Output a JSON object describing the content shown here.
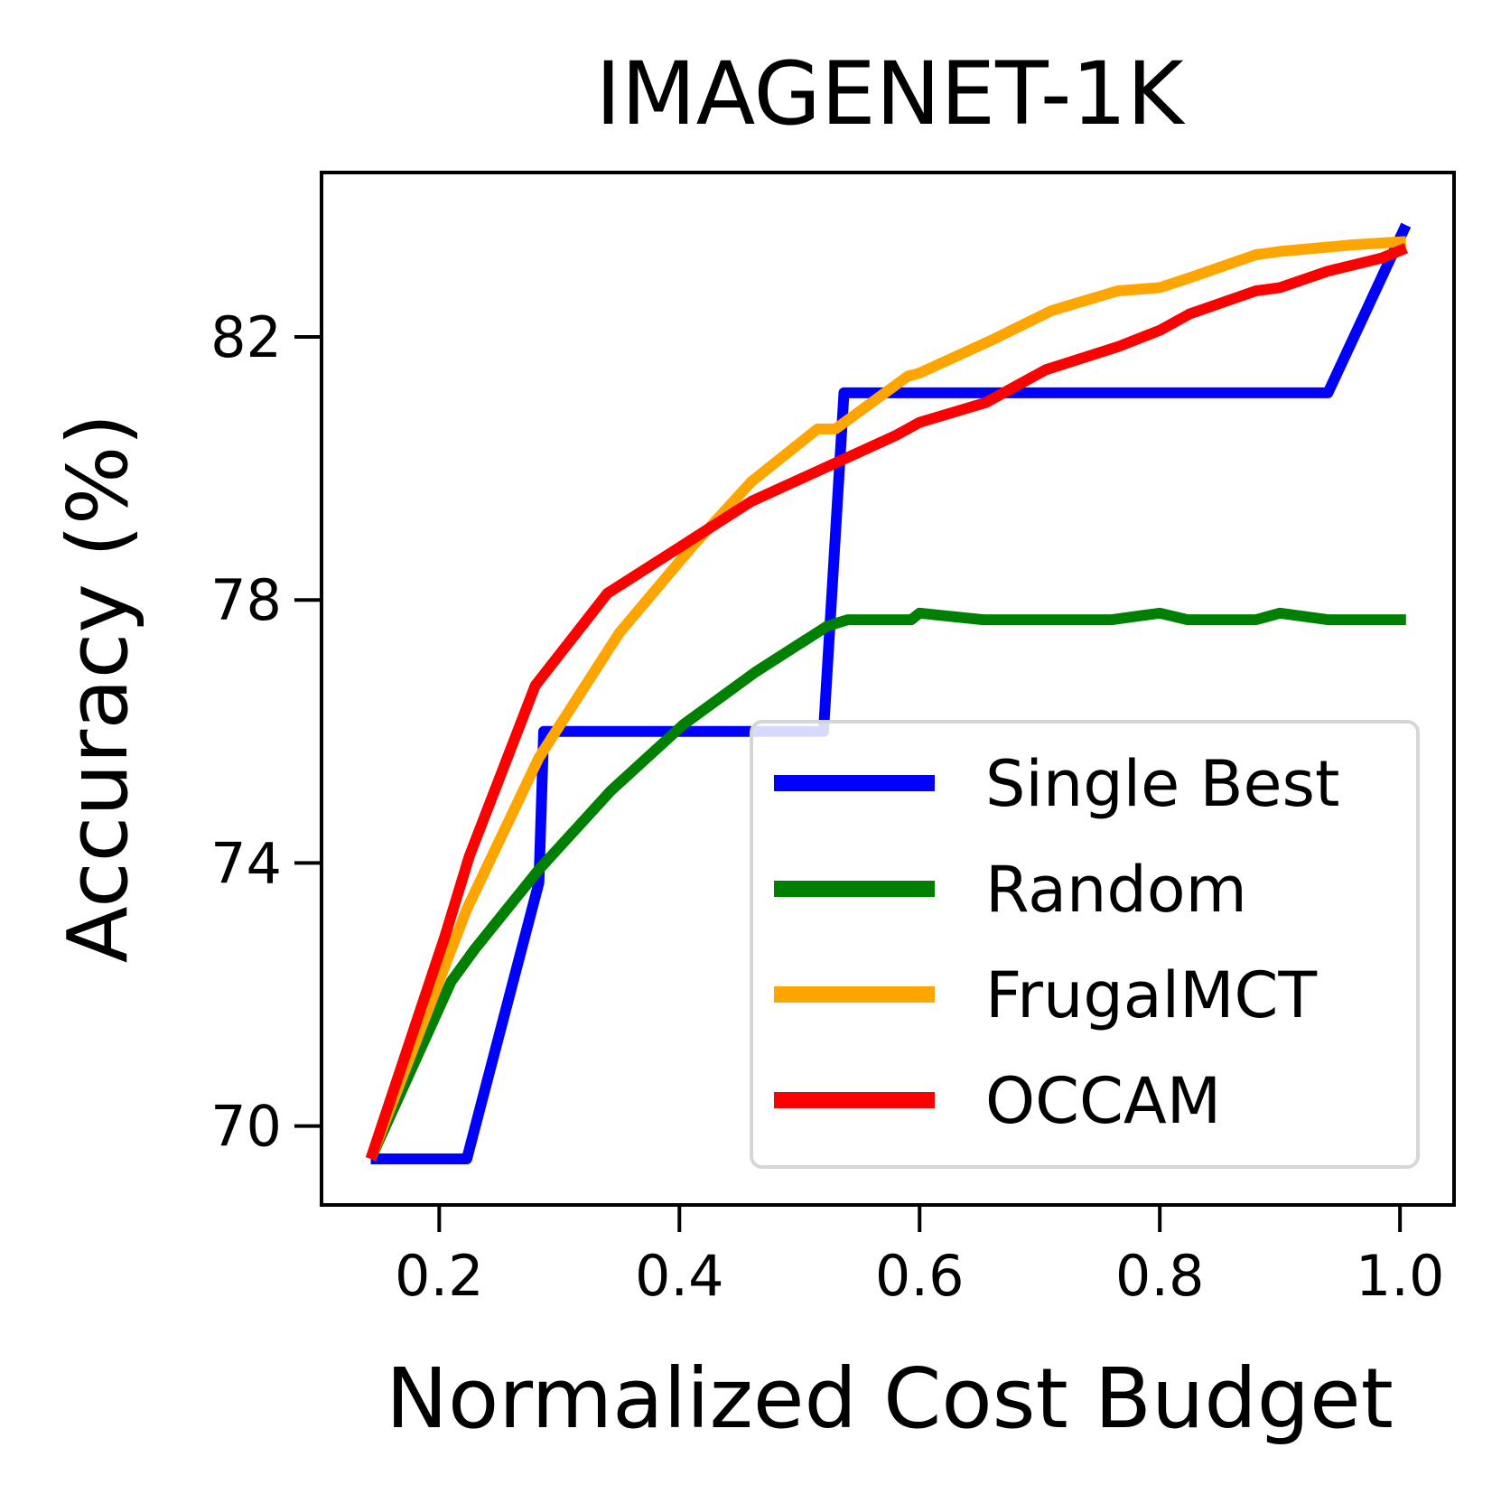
{
  "chart_data": {
    "type": "line",
    "title": "IMAGENET-1K",
    "xlabel": "Normalized Cost Budget",
    "ylabel": "Accuracy (%)",
    "xlim": [
      0.102,
      1.045
    ],
    "ylim": [
      68.8,
      84.5
    ],
    "xticks": [
      0.2,
      0.4,
      0.6,
      0.8,
      1.0
    ],
    "xtick_labels": [
      "0.2",
      "0.4",
      "0.6",
      "0.8",
      "1.0"
    ],
    "yticks": [
      70,
      74,
      78,
      82
    ],
    "ytick_labels": [
      "70",
      "74",
      "78",
      "82"
    ],
    "grid": false,
    "legend_position": "lower-right",
    "series": [
      {
        "name": "Single Best",
        "color": "#0000ff",
        "x": [
          0.143,
          0.223,
          0.283,
          0.287,
          0.52,
          0.537,
          0.94,
          1.005
        ],
        "y": [
          69.5,
          69.5,
          73.7,
          76.0,
          76.0,
          81.15,
          81.15,
          83.7
        ]
      },
      {
        "name": "Random",
        "color": "#008000",
        "x": [
          0.143,
          0.21,
          0.23,
          0.283,
          0.343,
          0.403,
          0.463,
          0.523,
          0.54,
          0.593,
          0.6,
          0.653,
          0.7,
          0.76,
          0.8,
          0.823,
          0.88,
          0.9,
          0.94,
          1.005
        ],
        "y": [
          69.5,
          72.2,
          72.7,
          73.9,
          75.1,
          76.1,
          76.9,
          77.6,
          77.7,
          77.7,
          77.8,
          77.7,
          77.7,
          77.7,
          77.8,
          77.7,
          77.7,
          77.8,
          77.7,
          77.7
        ],
        "y_note": "approximate"
      },
      {
        "name": "FrugalMCT",
        "color": "#ffa500",
        "x": [
          0.143,
          0.223,
          0.283,
          0.35,
          0.41,
          0.46,
          0.515,
          0.53,
          0.59,
          0.6,
          0.66,
          0.71,
          0.765,
          0.8,
          0.825,
          0.88,
          0.9,
          0.96,
          1.005
        ],
        "y": [
          69.5,
          73.3,
          75.6,
          77.5,
          78.8,
          79.8,
          80.6,
          80.6,
          81.4,
          81.45,
          81.95,
          82.4,
          82.7,
          82.75,
          82.9,
          83.25,
          83.3,
          83.4,
          83.45
        ]
      },
      {
        "name": "OCCAM",
        "color": "#ff0000",
        "x": [
          0.143,
          0.205,
          0.225,
          0.28,
          0.34,
          0.4,
          0.46,
          0.52,
          0.58,
          0.6,
          0.655,
          0.705,
          0.765,
          0.8,
          0.825,
          0.88,
          0.9,
          0.94,
          0.985,
          1.005
        ],
        "y": [
          69.5,
          72.9,
          74.1,
          76.7,
          78.1,
          78.8,
          79.5,
          80.0,
          80.5,
          80.7,
          81.0,
          81.5,
          81.85,
          82.1,
          82.35,
          82.7,
          82.75,
          83.0,
          83.2,
          83.35
        ]
      }
    ]
  }
}
